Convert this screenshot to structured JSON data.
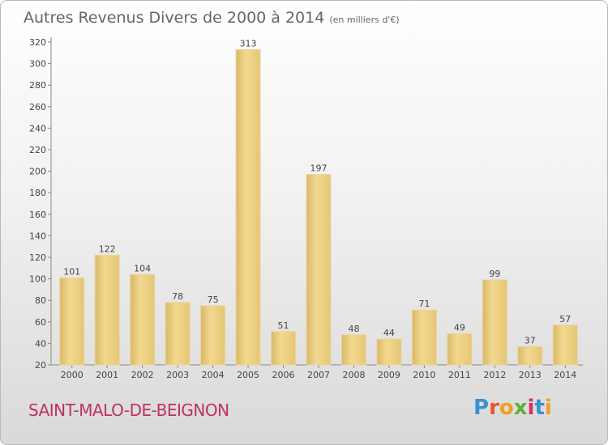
{
  "chart_data": {
    "type": "bar",
    "title": "Autres Revenus Divers de 2000 à 2014",
    "subtitle": "(en milliers d'€)",
    "categories": [
      "2000",
      "2001",
      "2002",
      "2003",
      "2004",
      "2005",
      "2006",
      "2007",
      "2008",
      "2009",
      "2010",
      "2011",
      "2012",
      "2013",
      "2014"
    ],
    "values": [
      101,
      122,
      104,
      78,
      75,
      313,
      51,
      197,
      48,
      44,
      71,
      49,
      99,
      37,
      57
    ],
    "ylim": [
      20,
      320
    ],
    "yticks": [
      20,
      40,
      60,
      80,
      100,
      120,
      140,
      160,
      180,
      200,
      220,
      240,
      260,
      280,
      300,
      320
    ],
    "grid": false,
    "bar_color": "#e8c97a"
  },
  "footer": {
    "place": "SAINT-MALO-DE-BEIGNON",
    "logo_text": "Proxiti",
    "logo_colors": [
      "#3a8fd6",
      "#e8562a",
      "#f0a020",
      "#5cb03c",
      "#d6306a",
      "#3a8fd6",
      "#f0a020"
    ]
  }
}
